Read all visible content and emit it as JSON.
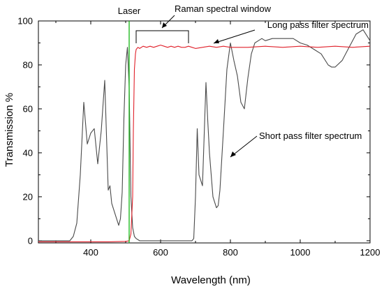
{
  "chart_data": {
    "type": "line",
    "xlabel": "Wavelength (nm)",
    "ylabel": "Transmission %",
    "xlim": [
      250,
      1200
    ],
    "ylim": [
      -1,
      100
    ],
    "xticks": [
      400,
      600,
      800,
      1000,
      1200
    ],
    "xtick_labels": [
      "400",
      "600",
      "800",
      "1000",
      "1200"
    ],
    "yticks": [
      0,
      20,
      40,
      60,
      80,
      100
    ],
    "ytick_labels": [
      "0",
      "20",
      "40",
      "60",
      "80",
      "100"
    ],
    "grid": false,
    "legend": "none",
    "series": [
      {
        "name": "Short pass filter spectrum",
        "color": "#4a4a4a",
        "x": [
          250,
          340,
          350,
          360,
          370,
          380,
          390,
          400,
          410,
          420,
          430,
          440,
          450,
          455,
          460,
          470,
          480,
          485,
          490,
          495,
          500,
          505,
          510,
          515,
          520,
          525,
          530,
          540,
          560,
          600,
          650,
          680,
          690,
          695,
          700,
          705,
          710,
          720,
          730,
          735,
          740,
          750,
          760,
          765,
          770,
          780,
          790,
          800,
          810,
          820,
          830,
          840,
          850,
          860,
          870,
          880,
          890,
          900,
          920,
          950,
          980,
          1000,
          1020,
          1040,
          1060,
          1080,
          1090,
          1100,
          1120,
          1140,
          1160,
          1180,
          1200
        ],
        "y": [
          0,
          0,
          2,
          8,
          30,
          63,
          44,
          49,
          51,
          35,
          50,
          73,
          23,
          25,
          17,
          12,
          7,
          10,
          22,
          56,
          80,
          88,
          70,
          20,
          6,
          2,
          1,
          0,
          0,
          0,
          0,
          0,
          0,
          1,
          20,
          51,
          30,
          25,
          72,
          55,
          40,
          20,
          15,
          16,
          23,
          50,
          78,
          90,
          82,
          75,
          63,
          60,
          74,
          85,
          90,
          91,
          92,
          91,
          92,
          92,
          92,
          90,
          89,
          87,
          85,
          80,
          79,
          79,
          82,
          88,
          94,
          96,
          91
        ]
      },
      {
        "name": "Long pass filter spectrum",
        "color": "#e0202a",
        "x": [
          250,
          350,
          450,
          500,
          510,
          515,
          520,
          522,
          525,
          528,
          530,
          535,
          540,
          550,
          560,
          570,
          580,
          590,
          600,
          610,
          620,
          630,
          640,
          650,
          660,
          670,
          680,
          690,
          700,
          720,
          740,
          760,
          780,
          800,
          850,
          900,
          950,
          1000,
          1050,
          1100,
          1150,
          1200
        ],
        "y": [
          -0.5,
          -0.5,
          -0.5,
          -0.3,
          0,
          3,
          20,
          50,
          78,
          85,
          87,
          88,
          87.5,
          88.5,
          88,
          88.5,
          88,
          88.5,
          89,
          88.5,
          88,
          88.5,
          88,
          88.5,
          88,
          88,
          88.5,
          88,
          87.5,
          88,
          88.5,
          88,
          88.5,
          88,
          88,
          88.5,
          88,
          88.5,
          88,
          88.5,
          88,
          88.5
        ]
      },
      {
        "name": "Laser",
        "color": "#22bb22",
        "x": [
          510,
          510
        ],
        "y": [
          -1,
          100
        ]
      }
    ],
    "annotations": {
      "laser": "Laser",
      "window": "Raman spectral window",
      "long_pass": "Long pass filter spectrum",
      "short_pass": "Short pass filter spectrum"
    },
    "window_range": [
      530,
      680
    ]
  }
}
